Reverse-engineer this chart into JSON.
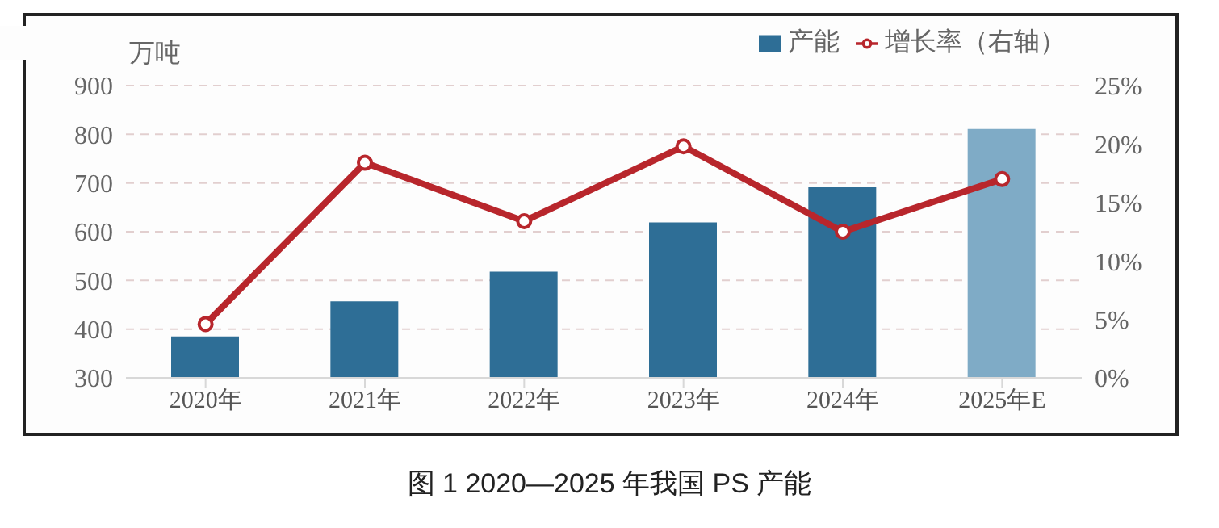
{
  "chart_data": {
    "type": "bar",
    "title": "图 1  2020—2025 年我国 PS 产能",
    "ylabel": "万吨",
    "categories": [
      "2020年",
      "2021年",
      "2022年",
      "2023年",
      "2024年",
      "2025年E"
    ],
    "series": [
      {
        "name": "产能",
        "color": "#2e6e96",
        "colors": [
          "#2e6e96",
          "#2e6e96",
          "#2e6e96",
          "#2e6e96",
          "#2e6e96",
          "#7fabc6"
        ],
        "values": [
          385,
          457,
          518,
          619,
          691,
          811
        ]
      },
      {
        "name": "增长率（右轴）",
        "type": "line",
        "axis": "y2",
        "color": "#b8262c",
        "marker": "circle",
        "values": [
          4.6,
          18.4,
          13.4,
          19.8,
          12.5,
          17.0
        ]
      }
    ],
    "ylim": [
      300,
      900
    ],
    "yticks": [
      300,
      400,
      500,
      600,
      700,
      800,
      900
    ],
    "y2lim": [
      0,
      25
    ],
    "y2ticks": [
      {
        "value": 0,
        "label": "0%"
      },
      {
        "value": 5,
        "label": "5%"
      },
      {
        "value": 10,
        "label": "10%"
      },
      {
        "value": 15,
        "label": "15%"
      },
      {
        "value": 20,
        "label": "20%"
      },
      {
        "value": 25,
        "label": "25%"
      }
    ],
    "grid": "y",
    "legend": "top right"
  }
}
